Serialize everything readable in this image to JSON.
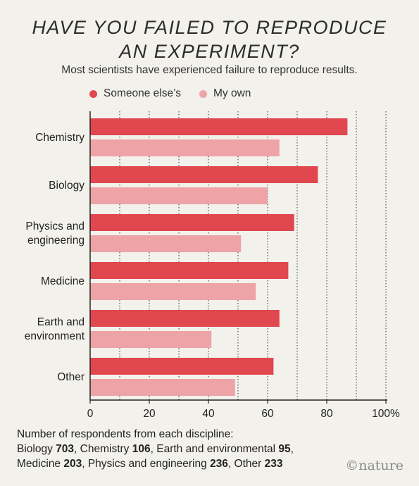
{
  "chart_data": {
    "type": "bar",
    "orientation": "horizontal",
    "title": "HAVE YOU FAILED TO REPRODUCE AN EXPERIMENT?",
    "subtitle": "Most scientists have experienced failure to reproduce results.",
    "categories": [
      [
        "Chemistry"
      ],
      [
        "Biology"
      ],
      [
        "Physics and",
        "engineering"
      ],
      [
        "Medicine"
      ],
      [
        "Earth and",
        "environment"
      ],
      [
        "Other"
      ]
    ],
    "series": [
      {
        "name": "Someone else's",
        "color": "#e0474f",
        "values": [
          87,
          77,
          69,
          67,
          64,
          62
        ]
      },
      {
        "name": "My own",
        "color": "#eea3a6",
        "values": [
          64,
          60,
          51,
          56,
          41,
          49
        ]
      }
    ],
    "xlim": [
      0,
      100
    ],
    "xticks": [
      0,
      20,
      40,
      60,
      80,
      100
    ],
    "xtick_labels": [
      "0",
      "20",
      "40",
      "60",
      "80",
      "100%"
    ],
    "grid": "vertical dotted every 10",
    "legend_position": "top-left",
    "notes": {
      "heading": "Number of respondents from each discipline:",
      "respondents": [
        {
          "name": "Biology",
          "count": 703
        },
        {
          "name": "Chemistry",
          "count": 106
        },
        {
          "name": "Earth and environmental",
          "count": 95
        },
        {
          "name": "Medicine",
          "count": 203
        },
        {
          "name": "Physics and engineering",
          "count": 236
        },
        {
          "name": "Other",
          "count": 233
        }
      ]
    }
  },
  "header": {
    "title_line1": "HAVE YOU FAILED TO REPRODUCE",
    "title_line2": "AN EXPERIMENT?",
    "subtitle": "Most scientists have experienced failure to reproduce results."
  },
  "legend": {
    "item1": "Someone else’s",
    "item2": "My own"
  },
  "brand": "©nature"
}
